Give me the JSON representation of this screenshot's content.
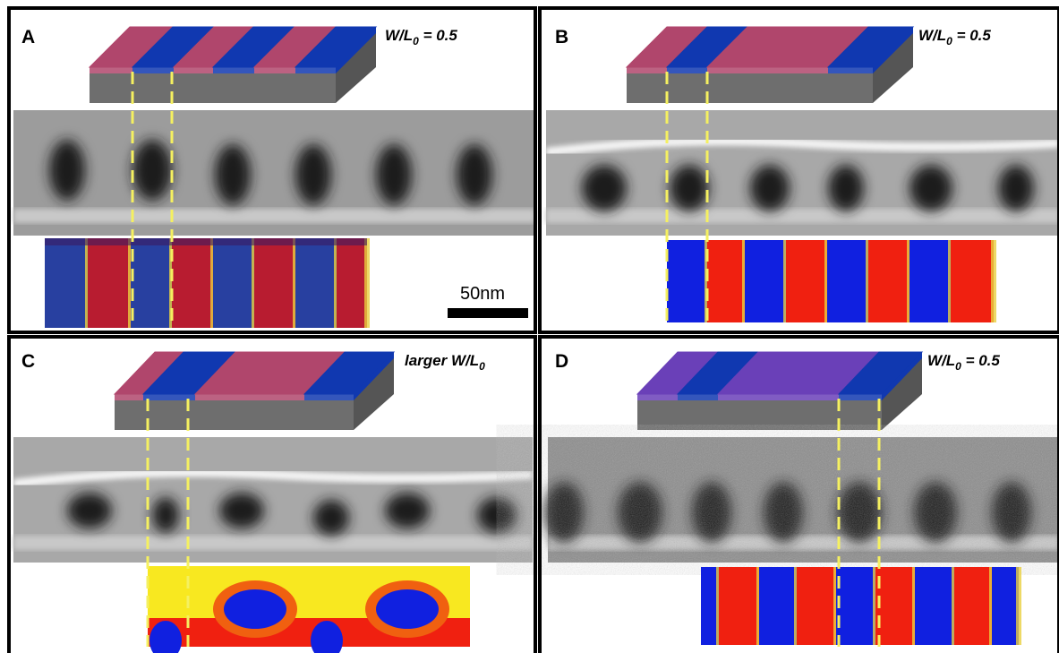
{
  "panels": [
    {
      "letter": "A",
      "label": {
        "main": "W/L",
        "sub": "0",
        "rest": " = 0.5"
      },
      "scale_bar": "50nm"
    },
    {
      "letter": "B",
      "label": {
        "main": "W/L",
        "sub": "0",
        "rest": " = 0.5"
      }
    },
    {
      "letter": "C",
      "label": {
        "main": "larger W/L",
        "sub": "0",
        "rest": ""
      }
    },
    {
      "letter": "D",
      "label": {
        "main": "W/L",
        "sub": "0",
        "rest": " = 0.5"
      }
    }
  ]
}
